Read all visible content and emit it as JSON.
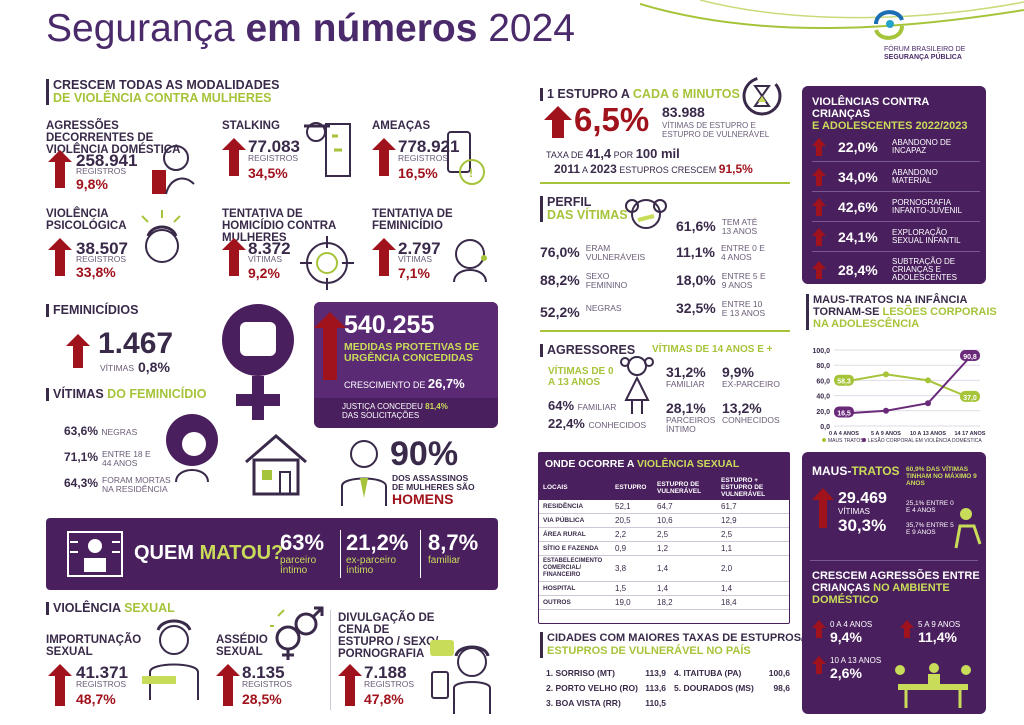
{
  "header": {
    "title_light": "Segurança ",
    "title_bold": "em números",
    "year": " 2024",
    "org_line1": "FÓRUM BRASILEIRO DE",
    "org_line2": "SEGURANÇA PÚBLICA"
  },
  "violencia_mulheres": {
    "title1": "CRESCEM TODAS AS MODALIDADES",
    "title2": "DE VIOLÊNCIA CONTRA MULHERES",
    "items": [
      {
        "label": "AGRESSÕES DECORRENTES DE VIOLÊNCIA DOMÉSTICA",
        "value": "258.941",
        "unit": "REGISTROS",
        "pct": "9,8%"
      },
      {
        "label": "STALKING",
        "value": "77.083",
        "unit": "REGISTROS",
        "pct": "34,5%"
      },
      {
        "label": "AMEAÇAS",
        "value": "778.921",
        "unit": "REGISTROS",
        "pct": "16,5%"
      },
      {
        "label": "VIOLÊNCIA PSICOLÓGICA",
        "value": "38.507",
        "unit": "REGISTROS",
        "pct": "33,8%"
      },
      {
        "label": "TENTATIVA DE HOMICÍDIO CONTRA MULHERES",
        "value": "8.372",
        "unit": "VÍTIMAS",
        "pct": "9,2%"
      },
      {
        "label": "TENTATIVA DE FEMINICÍDIO",
        "value": "2.797",
        "unit": "VÍTIMAS",
        "pct": "7,1%"
      }
    ]
  },
  "feminicidios": {
    "title": "FEMINICÍDIOS",
    "value": "1.467",
    "unit": "VÍTIMAS",
    "pct": "0,8%"
  },
  "medidas": {
    "value": "540.255",
    "line1": "MEDIDAS PROTETIVAS DE",
    "line2": "URGÊNCIA CONCEDIDAS",
    "cresc_label": "CRESCIMENTO DE ",
    "cresc_pct": "26,7%",
    "justica1": "JUSTIÇA CONCEDEU ",
    "justica_pct": "81,4%",
    "justica2": "DAS SOLICITAÇÕES"
  },
  "vitimas_fem": {
    "title1": "VÍTIMAS ",
    "title2": "DO FEMINICÍDIO",
    "rows": [
      {
        "pct": "63,6%",
        "label": "NEGRAS"
      },
      {
        "pct": "71,1%",
        "label": "ENTRE 18 E 44 ANOS"
      },
      {
        "pct": "64,3%",
        "label": "FORAM MORTAS NA RESIDÊNCIA"
      }
    ]
  },
  "assassinos": {
    "pct": "90%",
    "line1": "DOS ASSASSINOS",
    "line2": "DE MULHERES SÃO",
    "line3": "HOMENS"
  },
  "quem_matou": {
    "q1": "QUEM ",
    "q2": "MATOU?",
    "items": [
      {
        "pct": "63%",
        "label": "parceiro íntimo"
      },
      {
        "pct": "21,2%",
        "label": "ex-parceiro íntimo"
      },
      {
        "pct": "8,7%",
        "label": "familiar"
      }
    ]
  },
  "violencia_sexual": {
    "title1": "VIOLÊNCIA ",
    "title2": "SEXUAL",
    "items": [
      {
        "label": "IMPORTUNAÇÃO SEXUAL",
        "value": "41.371",
        "unit": "REGISTROS",
        "pct": "48,7%"
      },
      {
        "label": "ASSÉDIO SEXUAL",
        "value": "8.135",
        "unit": "REGISTROS",
        "pct": "28,5%"
      },
      {
        "label": "DIVULGAÇÃO DE CENA DE ESTUPRO / SEXO/ PORNOGRAFIA",
        "value": "7.188",
        "unit": "REGISTROS",
        "pct": "47,8%"
      }
    ]
  },
  "estupro": {
    "t1": "1 ESTUPRO A ",
    "t2": "CADA 6 MINUTOS",
    "pct": "6,5%",
    "value": "83.988",
    "desc": "VÍTIMAS DE ESTUPRO E ESTUPRO DE VULNERÁVEL",
    "taxa1": "TAXA DE ",
    "taxa_val": "41,4",
    "taxa2": " POR ",
    "taxa3": "100 mil",
    "periodo1": "2011",
    "periodo_a": " A ",
    "periodo2": "2023",
    "periodo3": " ESTUPROS CRESCEM ",
    "periodo_pct": "91,5%"
  },
  "perfil": {
    "t1": "PERFIL",
    "t2": "DAS VÍTIMAS",
    "left": [
      {
        "pct": "76,0%",
        "label": "ERAM VULNERÁVEIS"
      },
      {
        "pct": "88,2%",
        "label": "SEXO FEMININO"
      },
      {
        "pct": "52,2%",
        "label": "NEGRAS"
      }
    ],
    "right": [
      {
        "pct": "61,6%",
        "label": "TEM ATÉ 13 ANOS"
      },
      {
        "pct": "11,1%",
        "label": "ENTRE 0 E 4 ANOS"
      },
      {
        "pct": "18,0%",
        "label": "ENTRE 5 E 9 ANOS"
      },
      {
        "pct": "32,5%",
        "label": "ENTRE 10 E 13 ANOS"
      }
    ]
  },
  "agressores": {
    "title": "AGRESSORES",
    "sub1": "VÍTIMAS DE 0 A 13 ANOS",
    "sub2": "VÍTIMAS DE 14 ANOS E +",
    "a1": {
      "pct": "64%",
      "label": "FAMILIAR"
    },
    "a2": {
      "pct": "22,4%",
      "label": "CONHECIDOS"
    },
    "b1": {
      "pct": "31,2%",
      "label": "FAMILIAR"
    },
    "b2": {
      "pct": "9,9%",
      "label": "EX-PARCEIRO"
    },
    "b3": {
      "pct": "28,1%",
      "label": "PARCEIROS ÍNTIMO"
    },
    "b4": {
      "pct": "13,2%",
      "label": "CONHECIDOS"
    }
  },
  "onde": {
    "t1": "ONDE OCORRE A ",
    "t2": "VIOLÊNCIA SEXUAL",
    "headers": [
      "LOCAIS",
      "ESTUPRO",
      "ESTUPRO DE VULNERÁVEL",
      "ESTUPRO + ESTUPRO DE VULNERÁVEL"
    ],
    "rows": [
      [
        "RESIDÊNCIA",
        "52,1",
        "64,7",
        "61,7"
      ],
      [
        "VIA PÚBLICA",
        "20,5",
        "10,6",
        "12,9"
      ],
      [
        "ÁREA RURAL",
        "2,2",
        "2,5",
        "2,5"
      ],
      [
        "SÍTIO E FAZENDA",
        "0,9",
        "1,2",
        "1,1"
      ],
      [
        "ESTABELECIMENTO COMERCIAL/ FINANCEIRO",
        "3,8",
        "1,4",
        "2,0"
      ],
      [
        "HOSPITAL",
        "1,5",
        "1,4",
        "1,4"
      ],
      [
        "OUTROS",
        "19,0",
        "18,2",
        "18,4"
      ]
    ]
  },
  "cidades": {
    "t1": "CIDADES COM MAIORES TAXAS DE ESTUPROS/",
    "t2": "ESTUPROS DE VULNERÁVEL NO PAÍS",
    "items": [
      {
        "name": "1. SORRISO (MT)",
        "value": "113,9"
      },
      {
        "name": "2. PORTO VELHO (RO)",
        "value": "113,6"
      },
      {
        "name": "3. BOA VISTA (RR)",
        "value": "110,5"
      },
      {
        "name": "4. ITAITUBA (PA)",
        "value": "100,6"
      },
      {
        "name": "5. DOURADOS (MS)",
        "value": "98,6"
      }
    ]
  },
  "criancas": {
    "t1": "VIOLÊNCIAS CONTRA CRIANÇAS",
    "t2": "E ADOLESCENTES 2022/2023",
    "items": [
      {
        "pct": "22,0%",
        "label": "ABANDONO DE INCAPAZ"
      },
      {
        "pct": "34,0%",
        "label": "ABANDONO MATERIAL"
      },
      {
        "pct": "42,6%",
        "label": "PORNOGRAFIA INFANTO-JUVENIL"
      },
      {
        "pct": "24,1%",
        "label": "EXPLORAÇÃO SEXUAL INFANTIL"
      },
      {
        "pct": "28,4%",
        "label": "SUBTRAÇÃO DE CRIANÇAS E ADOLESCENTES"
      }
    ]
  },
  "maustratos_chart": {
    "t1": "MAUS-TRATOS NA INFÂNCIA",
    "t2": "TORNAM-SE ",
    "t3": "LESÕES CORPORAIS",
    "t4": "NA ADOLESCÊNCIA"
  },
  "chart_data": {
    "type": "line",
    "categories": [
      "0 A 4 ANOS",
      "5 A 9 ANOS",
      "10 A 13 ANOS",
      "14 17 ANOS"
    ],
    "ylim": [
      0,
      100
    ],
    "yticks": [
      "0,0",
      "20,0",
      "40,0",
      "60,0",
      "80,0",
      "100,0"
    ],
    "series": [
      {
        "name": "MAUS TRATOS",
        "values": [
          58.3,
          68,
          60,
          37.0
        ],
        "color": "#a6c43a"
      },
      {
        "name": "LESÃO CORPORAL EM VIOLÊNCIA DOMÉSTICA",
        "values": [
          16.5,
          20,
          30,
          90.8
        ],
        "color": "#6a2a7a"
      }
    ],
    "labels": [
      {
        "text": "58,3"
      },
      {
        "text": "16,5"
      },
      {
        "text": "90,8"
      },
      {
        "text": "37,0"
      }
    ]
  },
  "maus": {
    "t1": "MAUS-",
    "t2": "TRATOS",
    "value": "29.469",
    "unit": "VÍTIMAS",
    "pct": "30,3%",
    "n1": "60,9% DAS VÍTIMAS TINHAM NO MÁXIMO 9 ANOS",
    "n2": "25,1% ENTRE 0 E 4 ANOS",
    "n3": "35,7% ENTRE 5 E 9 ANOS"
  },
  "domestico": {
    "t1": "CRESCEM AGRESSÕES ENTRE",
    "t2": "CRIANÇAS ",
    "t3": "NO AMBIENTE",
    "t4": "DOMÉSTICO",
    "items": [
      {
        "label": "0 A 4 ANOS",
        "pct": "9,4%"
      },
      {
        "label": "5 A 9 ANOS",
        "pct": "11,4%"
      },
      {
        "label": "10 A 13 ANOS",
        "pct": "2,6%"
      }
    ]
  }
}
